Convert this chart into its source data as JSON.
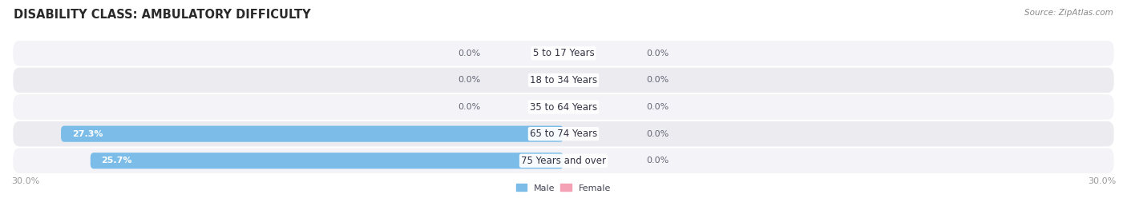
{
  "title": "DISABILITY CLASS: AMBULATORY DIFFICULTY",
  "source": "Source: ZipAtlas.com",
  "categories": [
    "5 to 17 Years",
    "18 to 34 Years",
    "35 to 64 Years",
    "65 to 74 Years",
    "75 Years and over"
  ],
  "male_values": [
    0.0,
    0.0,
    0.0,
    27.3,
    25.7
  ],
  "female_values": [
    0.0,
    0.0,
    0.0,
    0.0,
    0.0
  ],
  "axis_max": 30.0,
  "male_color": "#7BBDE8",
  "female_color": "#F4A0B5",
  "row_colors": [
    "#F4F4F8",
    "#EBEBF0"
  ],
  "title_color": "#2a2a2a",
  "value_color_inside": "#FFFFFF",
  "value_color_outside": "#666677",
  "axis_label_color": "#999999",
  "category_color": "#333344",
  "legend_color": "#444455",
  "source_color": "#888888",
  "title_fontsize": 10.5,
  "label_fontsize": 8.0,
  "axis_fontsize": 8.0,
  "category_fontsize": 8.5,
  "bar_height": 0.6,
  "fig_width": 14.06,
  "fig_height": 2.68,
  "axis_max_label": "30.0%"
}
